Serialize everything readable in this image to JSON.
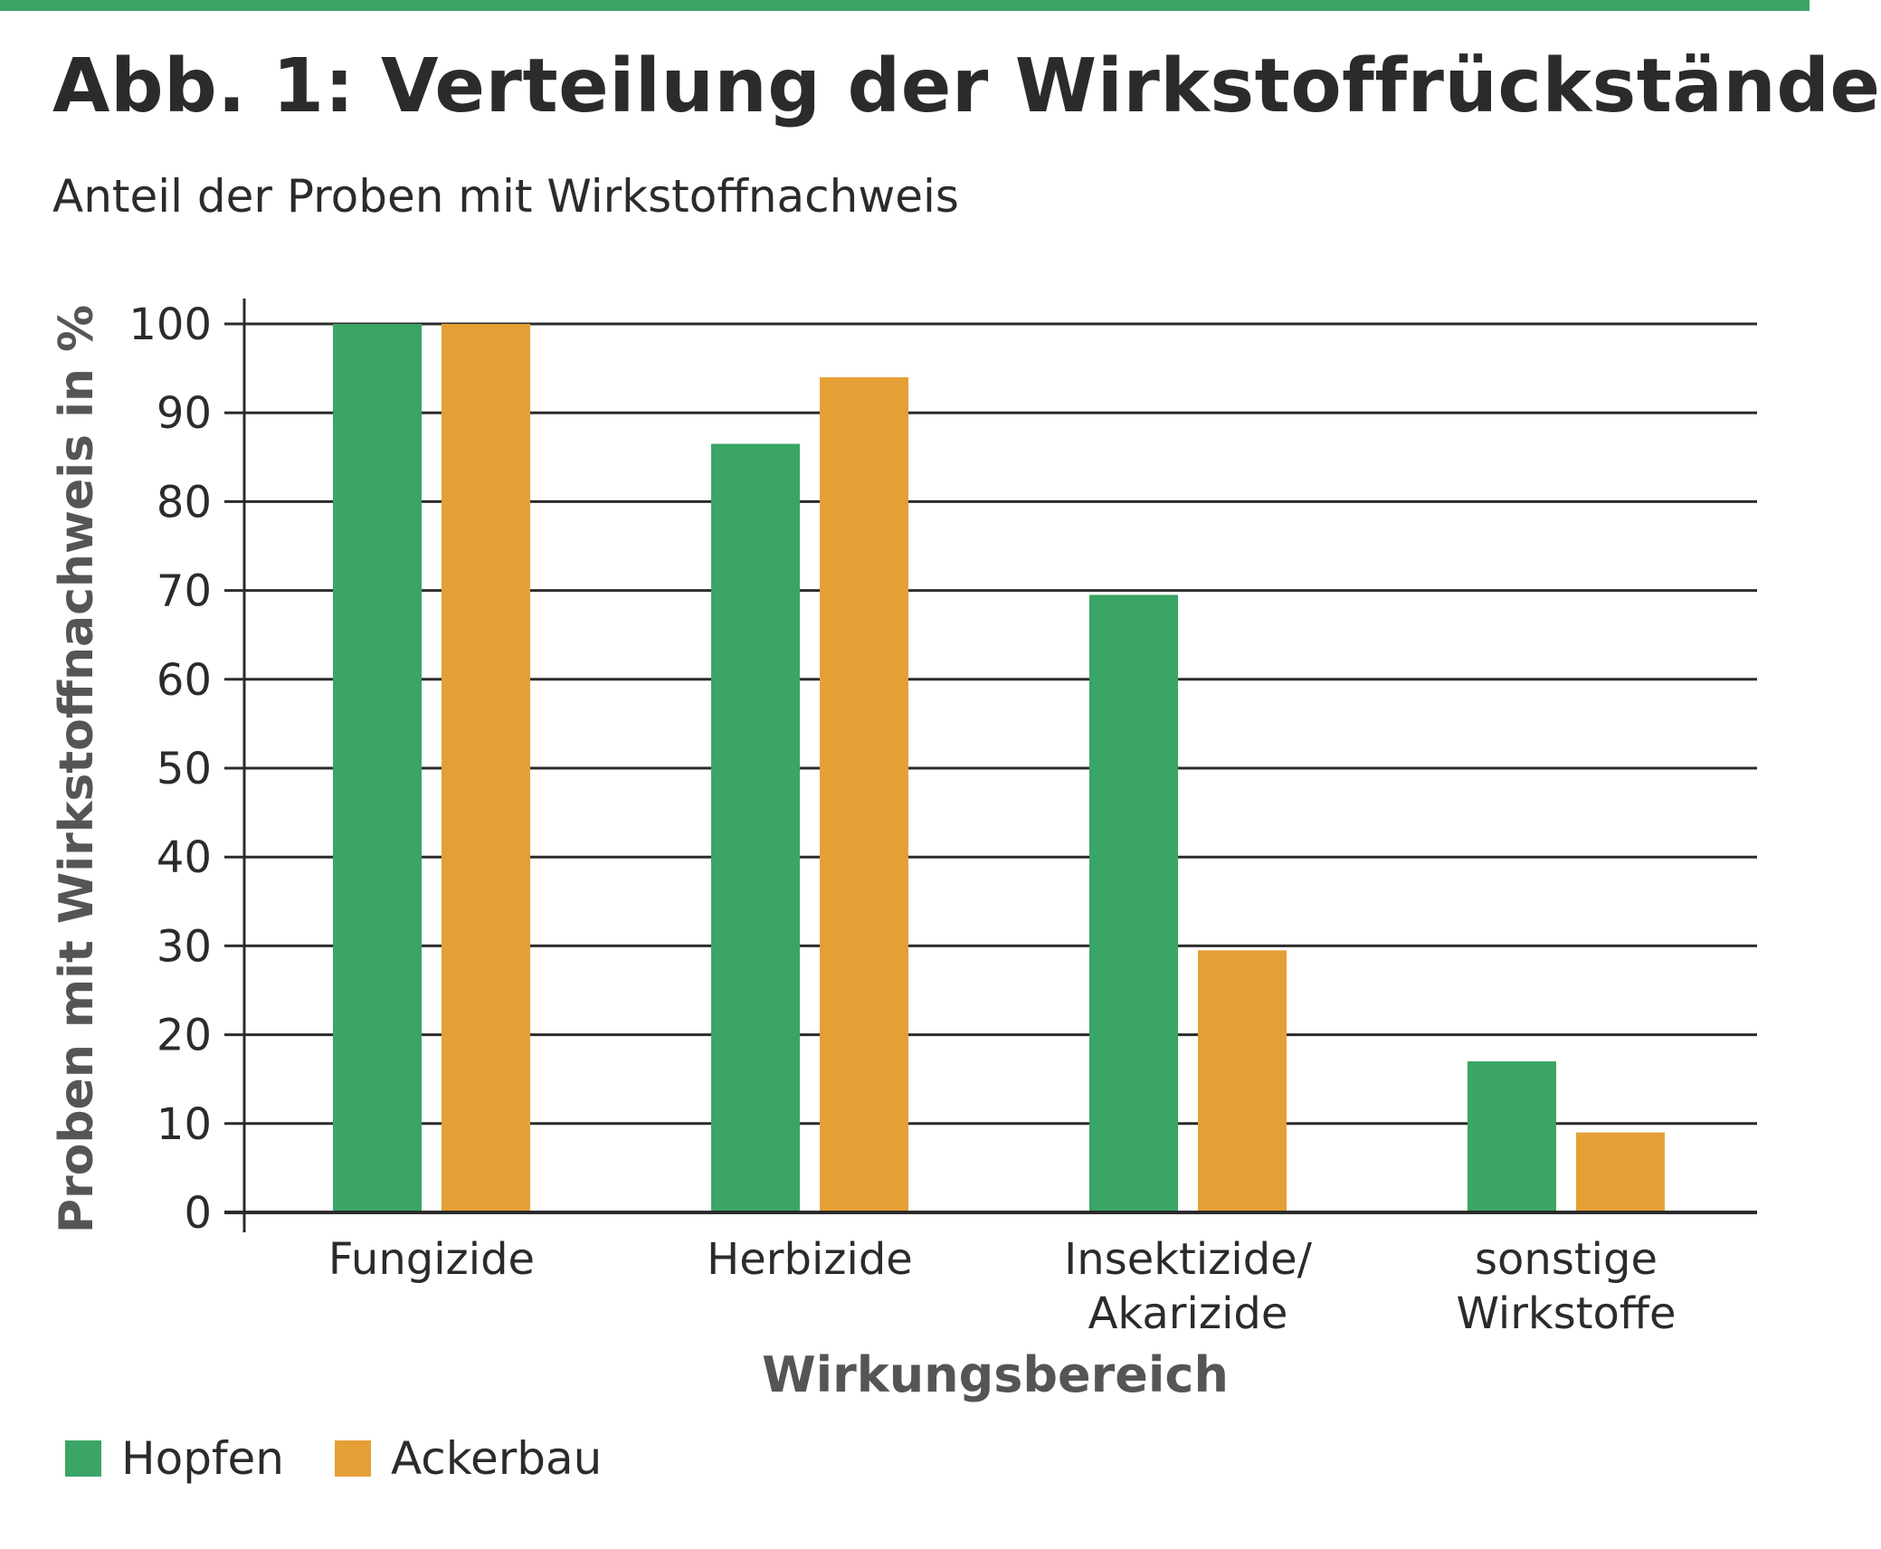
{
  "colors": {
    "accent_bar": "#3aa564",
    "hopfen": "#3aa564",
    "ackerbau": "#e5a035",
    "axis": "#2b2b2b",
    "text": "#2b2b2b",
    "axis_label": "#555555"
  },
  "title": "Abb. 1: Verteilung der Wirkstoffrückstände",
  "subtitle": "Anteil der Proben mit Wirkstoffnachweis",
  "chart_data": {
    "type": "bar",
    "xlabel": "Wirkungsbereich",
    "ylabel": "Proben mit Wirkstoffnachweis in %",
    "ylim": [
      0,
      100
    ],
    "yticks": [
      "0",
      "10",
      "20",
      "30",
      "40",
      "50",
      "60",
      "70",
      "80",
      "90",
      "100"
    ],
    "grid": true,
    "legend_position": "bottom-left",
    "categories": [
      [
        "Fungizide"
      ],
      [
        "Herbizide"
      ],
      [
        "Insektizide/",
        "Akarizide"
      ],
      [
        "sonstige",
        "Wirkstoffe"
      ]
    ],
    "series": [
      {
        "name": "Hopfen",
        "color": "#3aa564",
        "values": [
          100,
          86.5,
          69.5,
          17
        ]
      },
      {
        "name": "Ackerbau",
        "color": "#e5a035",
        "values": [
          100,
          94,
          29.5,
          9
        ]
      }
    ]
  }
}
